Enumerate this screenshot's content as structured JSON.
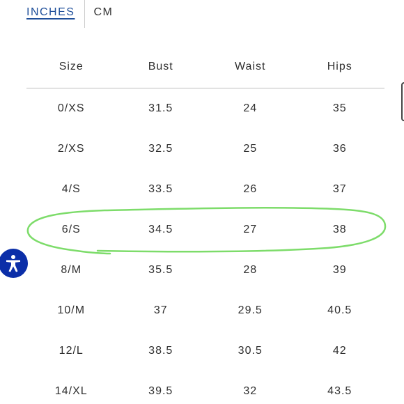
{
  "units": {
    "active": "INCHES",
    "inactive": "CM"
  },
  "table": {
    "headers": [
      "Size",
      "Bust",
      "Waist",
      "Hips"
    ],
    "rows": [
      [
        "0/XS",
        "31.5",
        "24",
        "35"
      ],
      [
        "2/XS",
        "32.5",
        "25",
        "36"
      ],
      [
        "4/S",
        "33.5",
        "26",
        "37"
      ],
      [
        "6/S",
        "34.5",
        "27",
        "38"
      ],
      [
        "8/M",
        "35.5",
        "28",
        "39"
      ],
      [
        "10/M",
        "37",
        "29.5",
        "40.5"
      ],
      [
        "12/L",
        "38.5",
        "30.5",
        "42"
      ],
      [
        "14/XL",
        "39.5",
        "32",
        "43.5"
      ]
    ],
    "highlighted_row": "6/S"
  },
  "colors": {
    "link_blue": "#1f4f9a",
    "highlight_green": "#7ddc6a",
    "accessibility_blue": "#0b2ea8"
  },
  "icons": {
    "accessibility": "accessibility-person-icon"
  }
}
